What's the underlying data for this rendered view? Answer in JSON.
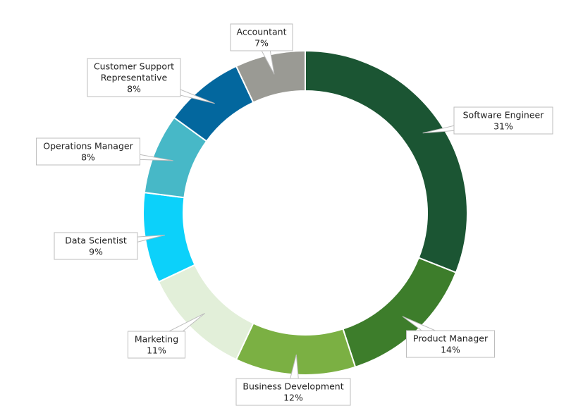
{
  "chart_data": {
    "type": "pie",
    "variant": "donut",
    "title": "",
    "slices": [
      {
        "name": "Software Engineer",
        "label_lines": [
          "Software Engineer"
        ],
        "percent_label": "31%",
        "value": 31,
        "color": "#1b5533"
      },
      {
        "name": "Product Manager",
        "label_lines": [
          "Product Manager"
        ],
        "percent_label": "14%",
        "value": 14,
        "color": "#3d7d2b"
      },
      {
        "name": "Business Development",
        "label_lines": [
          "Business Development"
        ],
        "percent_label": "12%",
        "value": 12,
        "color": "#7bb043"
      },
      {
        "name": "Marketing",
        "label_lines": [
          "Marketing"
        ],
        "percent_label": "11%",
        "value": 11,
        "color": "#e2efd9"
      },
      {
        "name": "Data Scientist",
        "label_lines": [
          "Data Scientist"
        ],
        "percent_label": "9%",
        "value": 9,
        "color": "#0cd1fa"
      },
      {
        "name": "Operations Manager",
        "label_lines": [
          "Operations Manager"
        ],
        "percent_label": "8%",
        "value": 8,
        "color": "#47b8c7"
      },
      {
        "name": "Customer Support Representative",
        "label_lines": [
          "Customer Support",
          "Representative"
        ],
        "percent_label": "8%",
        "value": 8,
        "color": "#03679e"
      },
      {
        "name": "Accountant",
        "label_lines": [
          "Accountant"
        ],
        "percent_label": "7%",
        "value": 7,
        "color": "#9a9a94"
      }
    ],
    "legend": "none",
    "data_labels": "callouts"
  }
}
